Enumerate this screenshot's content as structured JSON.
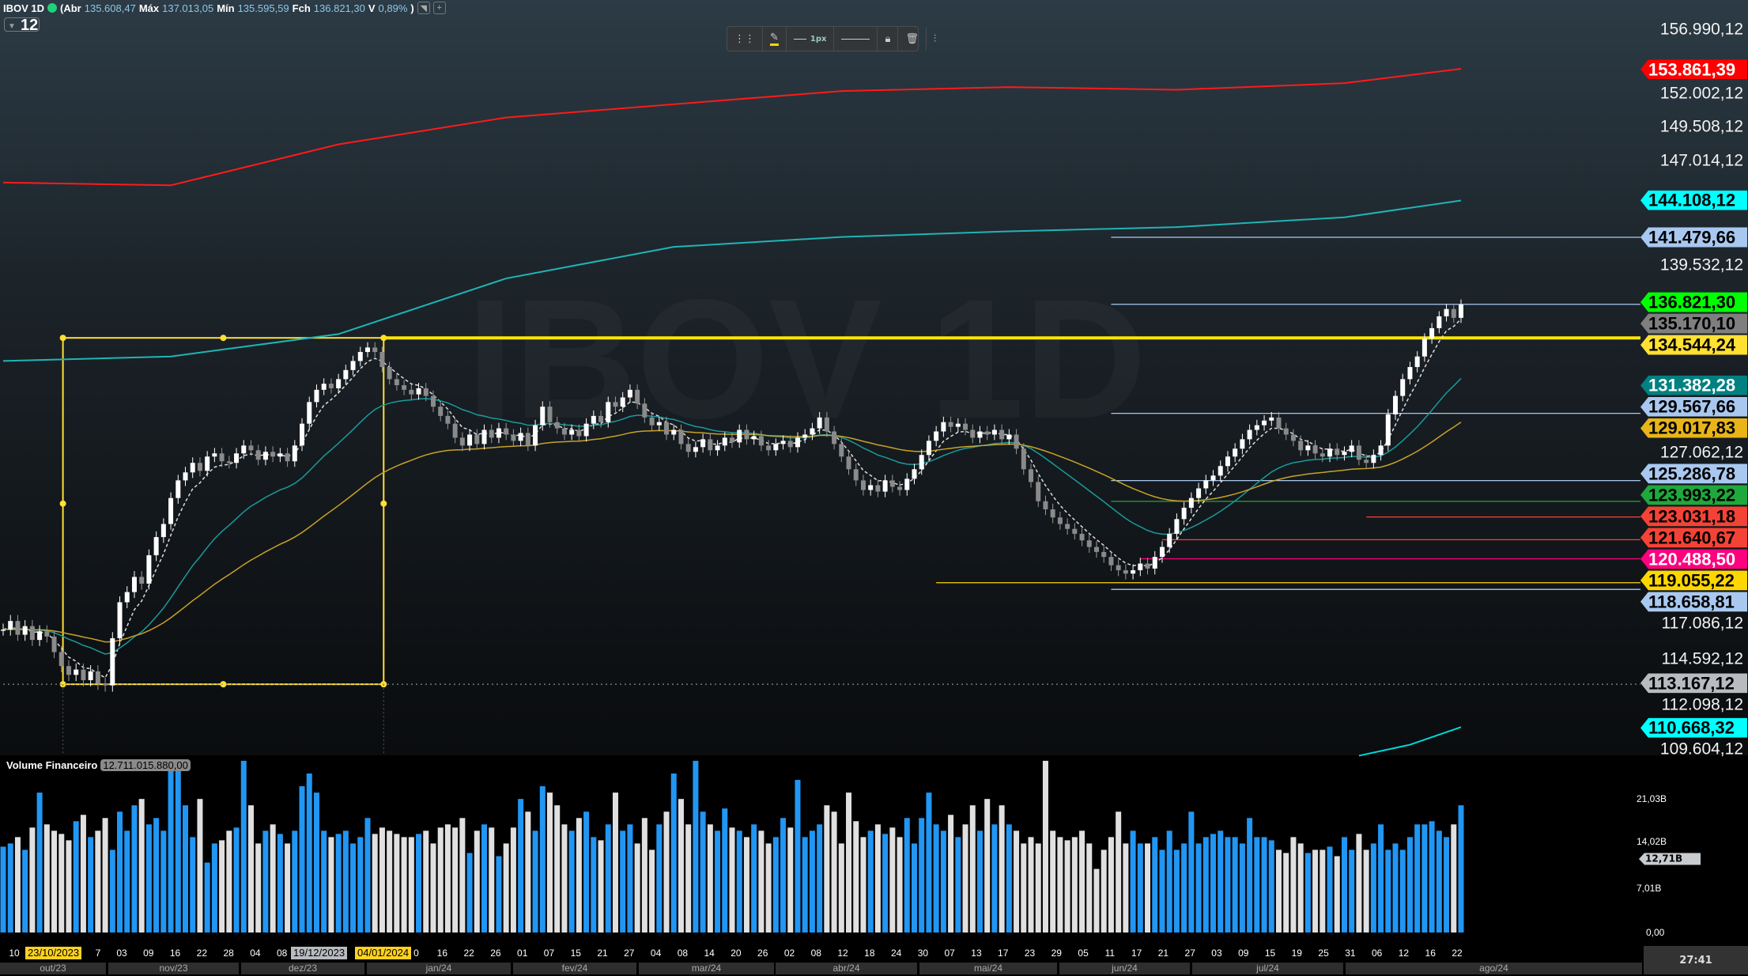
{
  "header": {
    "symbol": "IBOV 1D",
    "open_label": "(Abr",
    "open": "135.608,47",
    "high_label": "Máx",
    "high": "137.013,05",
    "low_label": "Mín",
    "low": "135.595,59",
    "close_label": "Fch",
    "close": "136.821,30",
    "var_label": "V",
    "var": "0,89%",
    "paren": ")",
    "status_color": "#1fd17a",
    "btn1": "◥",
    "btn2": "+"
  },
  "period": {
    "value": "12",
    "icon": "triangle-down"
  },
  "toolbar": {
    "drag": "⋮⋮",
    "pencil": "✎",
    "width_label": "1px",
    "style": "———",
    "lock": "🔒︎",
    "trash": "🗑︎",
    "settings": "⫶"
  },
  "watermark": "IBOV 1D",
  "price_axis": {
    "scale": "log",
    "labels": [
      "156.990,12",
      "152.002,12",
      "149.508,12",
      "147.014,12",
      "139.532,12",
      "127.062,12",
      "117.086,12",
      "114.592,12",
      "112.098,12",
      "109.604,12"
    ]
  },
  "price_tags": [
    {
      "text": "153.861,39",
      "bg": "#ff0000",
      "fg": "#ffffff"
    },
    {
      "text": "144.108,12",
      "bg": "#00ffff",
      "fg": "#000000"
    },
    {
      "text": "141.479,66",
      "bg": "#a9c8f0",
      "fg": "#000000"
    },
    {
      "text": "134.544,24",
      "bg": "#ffe033",
      "fg": "#000000"
    },
    {
      "text": "136.821,30",
      "bg": "#00ff00",
      "fg": "#000000"
    },
    {
      "text": "135.170,10",
      "bg": "#7f7f7f",
      "fg": "#000000"
    },
    {
      "text": "131.382,28",
      "bg": "#008080",
      "fg": "#ffffff"
    },
    {
      "text": "129.567,66",
      "bg": "#a9c8f0",
      "fg": "#000000"
    },
    {
      "text": "129.017,83",
      "bg": "#e8b418",
      "fg": "#000000"
    },
    {
      "text": "125.286,78",
      "bg": "#a9c8f0",
      "fg": "#000000"
    },
    {
      "text": "123.993,22",
      "bg": "#1fa83c",
      "fg": "#000000"
    },
    {
      "text": "123.031,18",
      "bg": "#f44336",
      "fg": "#000000"
    },
    {
      "text": "121.640,67",
      "bg": "#f44336",
      "fg": "#000000"
    },
    {
      "text": "120.488,50",
      "bg": "#ff007f",
      "fg": "#ffffff"
    },
    {
      "text": "118.658,81",
      "bg": "#a9c8f0",
      "fg": "#000000"
    },
    {
      "text": "119.055,22",
      "bg": "#ffd700",
      "fg": "#000000"
    },
    {
      "text": "113.167,12",
      "bg": "#b8bcc0",
      "fg": "#000000"
    },
    {
      "text": "110.668,32",
      "bg": "#00ffff",
      "fg": "#000000"
    }
  ],
  "chart_data": {
    "type": "candlestick",
    "scale": "log",
    "unit": "thousand points",
    "closes": [
      116.3,
      116.8,
      116.0,
      116.5,
      115.7,
      116.2,
      115.9,
      115.0,
      114.2,
      113.7,
      114.0,
      113.4,
      113.9,
      113.2,
      113.1,
      115.8,
      117.9,
      118.5,
      119.4,
      119.0,
      120.7,
      121.8,
      122.6,
      124.2,
      125.3,
      125.8,
      126.4,
      125.9,
      126.8,
      127.0,
      126.5,
      126.4,
      127.0,
      127.5,
      127.2,
      126.6,
      127.1,
      126.8,
      127.0,
      126.5,
      127.5,
      128.9,
      130.3,
      131.1,
      131.5,
      131.2,
      131.8,
      132.4,
      133.0,
      133.6,
      133.9,
      133.6,
      132.6,
      131.8,
      131.4,
      131.1,
      130.8,
      131.2,
      130.7,
      130.0,
      129.4,
      128.9,
      128.0,
      127.5,
      128.2,
      127.6,
      128.5,
      128.0,
      128.6,
      128.2,
      127.8,
      128.3,
      127.5,
      128.8,
      130.0,
      129.0,
      128.6,
      128.2,
      128.5,
      128.1,
      128.9,
      129.4,
      129.0,
      130.3,
      130.0,
      130.6,
      131.1,
      130.2,
      129.3,
      128.8,
      129.0,
      128.2,
      128.5,
      127.6,
      127.1,
      127.4,
      127.9,
      127.2,
      127.5,
      128.0,
      127.7,
      128.5,
      127.9,
      128.1,
      127.5,
      127.2,
      127.6,
      127.8,
      127.4,
      128.0,
      128.2,
      128.6,
      129.3,
      128.4,
      127.6,
      126.8,
      126.0,
      125.3,
      124.7,
      125.0,
      124.6,
      125.3,
      124.9,
      124.7,
      125.4,
      126.0,
      126.9,
      127.8,
      128.4,
      129.0,
      128.7,
      128.9,
      128.5,
      128.0,
      128.4,
      128.2,
      128.5,
      127.9,
      128.2,
      127.3,
      126.0,
      125.2,
      124.0,
      123.5,
      123.0,
      122.6,
      122.3,
      122.0,
      121.6,
      121.2,
      120.9,
      120.6,
      120.1,
      119.8,
      119.6,
      119.8,
      120.2,
      119.9,
      120.6,
      121.2,
      122.0,
      122.9,
      123.6,
      124.2,
      124.8,
      125.3,
      125.6,
      126.2,
      126.8,
      127.3,
      127.9,
      128.5,
      128.8,
      129.1,
      129.3,
      128.6,
      128.2,
      127.8,
      127.2,
      127.5,
      127.0,
      126.8,
      127.3,
      126.9,
      127.1,
      127.5,
      126.6,
      126.4,
      126.9,
      127.5,
      129.5,
      130.7,
      131.8,
      132.6,
      133.3,
      134.5,
      135.2,
      136.0,
      136.5,
      135.9,
      136.8
    ],
    "indicators": [
      {
        "color": "#ff1a1a",
        "points": [
          [
            0,
            145.4
          ],
          [
            23,
            145.2
          ],
          [
            46,
            148.2
          ],
          [
            69,
            150.2
          ],
          [
            92,
            151.2
          ],
          [
            115,
            152.2
          ],
          [
            138,
            152.5
          ],
          [
            161,
            152.3
          ],
          [
            184,
            152.8
          ],
          [
            200,
            153.9
          ]
        ]
      },
      {
        "color": "#1fb5b5",
        "points": [
          [
            0,
            133.0
          ],
          [
            23,
            133.3
          ],
          [
            46,
            134.8
          ],
          [
            69,
            138.6
          ],
          [
            92,
            140.8
          ],
          [
            115,
            141.5
          ],
          [
            138,
            141.9
          ],
          [
            161,
            142.2
          ],
          [
            184,
            142.9
          ],
          [
            200,
            144.1
          ]
        ]
      },
      {
        "color": "#00d8d8",
        "points": [
          [
            186,
            109.2
          ],
          [
            193,
            109.8
          ],
          [
            200,
            110.77
          ]
        ]
      }
    ],
    "ema_colors": {
      "fast": "#dddddd",
      "mid": "#1a9a9a",
      "slow": "#c9a227"
    },
    "levels": [
      {
        "price": 141.47966,
        "from": 152,
        "color": "#a9c8f0"
      },
      {
        "price": 136.8213,
        "from": 152,
        "color": "#a9c8f0"
      },
      {
        "price": 129.56766,
        "from": 152,
        "color": "#a9c8f0"
      },
      {
        "price": 125.28678,
        "from": 152,
        "color": "#a9c8f0"
      },
      {
        "price": 123.99322,
        "from": 152,
        "color": "#1fa83c"
      },
      {
        "price": 123.03118,
        "from": 187,
        "color": "#f44336"
      },
      {
        "price": 121.64067,
        "from": 159,
        "color": "#f44336"
      },
      {
        "price": 120.4885,
        "from": 156,
        "color": "#ff007f"
      },
      {
        "price": 119.05522,
        "from": 128,
        "color": "#ffd700"
      },
      {
        "price": 118.65881,
        "from": 152,
        "color": "#a9c8f0"
      },
      {
        "price": 134.54424,
        "from": 52.2,
        "color": "#ffe600",
        "width": 4
      },
      {
        "price": 113.16712,
        "from": 0,
        "color": "#8a8a8a",
        "dash": true
      }
    ],
    "box": {
      "from": 8.2,
      "to": 52.2,
      "top": 134.54424,
      "bottom": 113.16712,
      "color": "#ffe033"
    },
    "volume": {
      "title": "Volume Financeiro",
      "current": "12.711.015.880,00",
      "current_tag": "12,71B",
      "axis_labels": [
        "21,03B",
        "14,02B",
        "7,01B",
        "0,00"
      ],
      "up_color": "#2196f3",
      "down_color": "#e0e0e0",
      "values": [
        13.5,
        14.0,
        15.0,
        13.0,
        16.5,
        22.0,
        17.0,
        16.0,
        15.5,
        14.5,
        17.5,
        18.5,
        15.0,
        16.0,
        18.0,
        13.0,
        19.0,
        16.0,
        20.0,
        21.0,
        17.0,
        18.0,
        16.0,
        27.0,
        26.0,
        20.0,
        15.0,
        21.0,
        11.0,
        14.0,
        14.5,
        16.0,
        16.5,
        27.0,
        20.0,
        14.0,
        16.0,
        17.0,
        15.5,
        14.0,
        16.0,
        23.0,
        25.0,
        22.0,
        16.0,
        15.0,
        15.5,
        16.0,
        14.0,
        15.0,
        18.0,
        15.5,
        16.5,
        16.0,
        15.5,
        15.0,
        15.0,
        15.5,
        16.0,
        14.0,
        16.5,
        17.0,
        16.5,
        18.0,
        12.5,
        16.0,
        17.0,
        16.5,
        12.0,
        14.0,
        16.5,
        21.0,
        19.0,
        16.0,
        23.0,
        22.0,
        20.0,
        17.0,
        16.0,
        18.0,
        19.0,
        15.0,
        14.5,
        17.0,
        22.0,
        16.0,
        17.0,
        14.0,
        18.0,
        13.0,
        17.0,
        19.0,
        25.0,
        21.0,
        17.0,
        27.0,
        19.0,
        17.0,
        16.0,
        19.5,
        16.5,
        16.0,
        15.0,
        17.0,
        16.0,
        14.0,
        15.0,
        18.0,
        16.5,
        24.0,
        15.0,
        16.0,
        17.0,
        20.0,
        19.0,
        14.0,
        22.0,
        17.5,
        15.0,
        16.0,
        17.0,
        15.5,
        16.5,
        15.0,
        18.0,
        14.0,
        18.0,
        22.0,
        17.0,
        16.0,
        18.5,
        15.0,
        17.0,
        20.0,
        16.0,
        21.0,
        17.0,
        20.0,
        17.0,
        16.0,
        14.0,
        15.0,
        14.0,
        27.0,
        16.0,
        15.0,
        14.5,
        15.0,
        16.0,
        14.0,
        10.0,
        13.0,
        15.0,
        19.0,
        14.0,
        16.0,
        14.0,
        14.0,
        15.0,
        13.0,
        16.0,
        13.0,
        14.0,
        19.0,
        14.0,
        15.0,
        15.5,
        16.0,
        15.0,
        15.0,
        14.0,
        18.0,
        15.0,
        15.0,
        14.5,
        13.0,
        12.5,
        15.0,
        14.0,
        12.5,
        13.0,
        13.0,
        13.5,
        12.0,
        15.0,
        13.0,
        15.5,
        13.0,
        14.0,
        17.0,
        13.0,
        14.0,
        13.0,
        15.0,
        17.0,
        17.0,
        17.5,
        16.0,
        15.0,
        17.0,
        20.0,
        17.0,
        19.0,
        20.0,
        17.0,
        16.0,
        16.0,
        12.7
      ]
    }
  },
  "date_axis": {
    "first": "10",
    "hl1": "23/10/2023",
    "after_hl1": "7",
    "ticks_a": [
      "03",
      "09",
      "16",
      "22",
      "28",
      "04",
      "08"
    ],
    "hl2": "19/12/2023",
    "hl3": "04/01/2024",
    "ticks_b": [
      "0",
      "16",
      "22",
      "26",
      "01",
      "07",
      "15",
      "21",
      "27",
      "04",
      "08",
      "14",
      "20",
      "26",
      "02",
      "08",
      "12",
      "18",
      "24",
      "30",
      "07",
      "13",
      "17",
      "23",
      "29",
      "05",
      "11",
      "17",
      "21",
      "27",
      "03",
      "09",
      "15",
      "19",
      "25",
      "31",
      "06",
      "12",
      "16",
      "22"
    ],
    "months": [
      "out/23",
      "nov/23",
      "dez/23",
      "jan/24",
      "fev/24",
      "mar/24",
      "abr/24",
      "mai/24",
      "jun/24",
      "jul/24",
      "ago/24"
    ],
    "clock": "27:41"
  }
}
